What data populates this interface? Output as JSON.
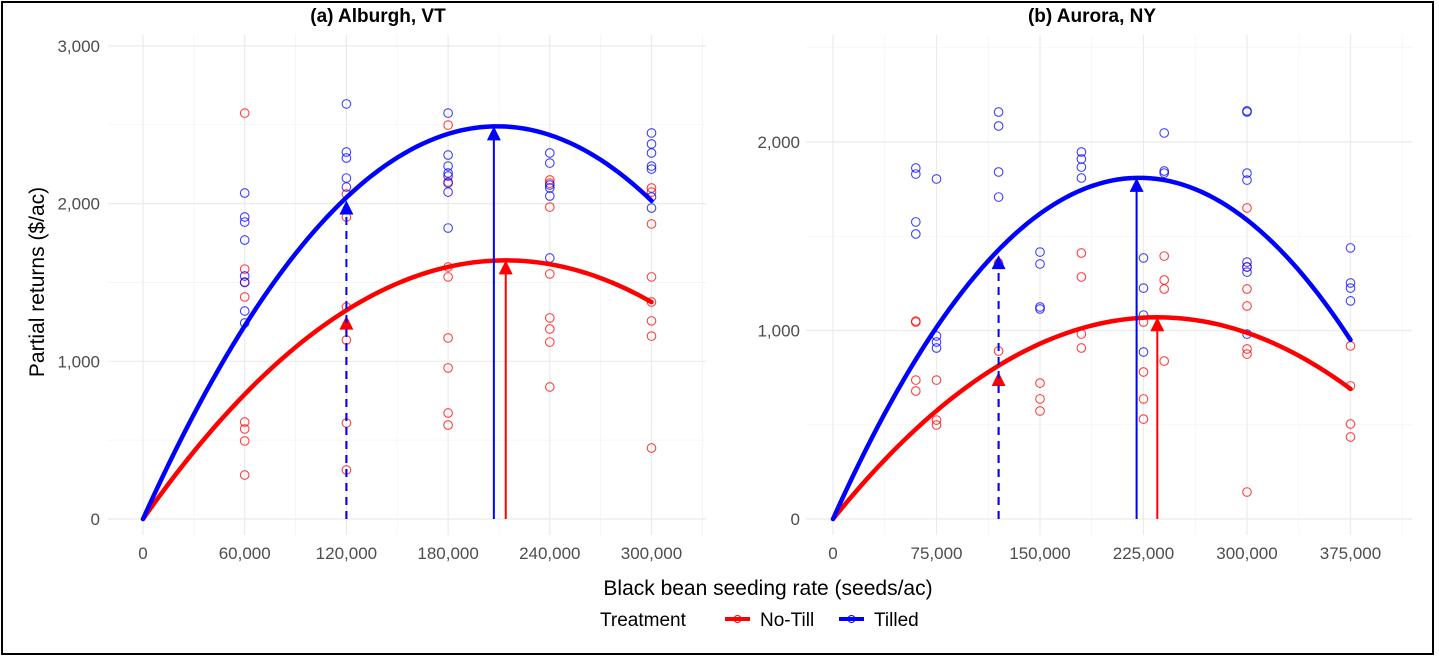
{
  "chart_data": [
    {
      "type": "scatter",
      "title": "(a) Alburgh, VT",
      "xlabel": "Black bean seeding rate (seeds/ac)",
      "ylabel": "Partial returns ($/ac)",
      "xlim": [
        0,
        330000
      ],
      "ylim": [
        0,
        3000
      ],
      "xticks": [
        0,
        60000,
        120000,
        180000,
        240000,
        300000
      ],
      "xtick_labels": [
        "0",
        "60,000",
        "120,000",
        "180,000",
        "240,000",
        "300,000"
      ],
      "yticks": [
        0,
        1000,
        2000,
        3000
      ],
      "ytick_labels": [
        "0",
        "1,000",
        "2,000",
        "3,000"
      ],
      "grid": true,
      "series": [
        {
          "name": "No-Till",
          "color": "#ff0000",
          "points": [
            [
              60000,
              2574
            ],
            [
              60000,
              1585
            ],
            [
              60000,
              1503
            ],
            [
              60000,
              1408
            ],
            [
              60000,
              615
            ],
            [
              60000,
              571
            ],
            [
              60000,
              495
            ],
            [
              60000,
              279
            ],
            [
              120000,
              2061
            ],
            [
              120000,
              1915
            ],
            [
              120000,
              1344
            ],
            [
              120000,
              1135
            ],
            [
              120000,
              609
            ],
            [
              120000,
              311
            ],
            [
              180000,
              2498
            ],
            [
              180000,
              2137
            ],
            [
              180000,
              1598
            ],
            [
              180000,
              1535
            ],
            [
              180000,
              1148
            ],
            [
              180000,
              958
            ],
            [
              180000,
              672
            ],
            [
              180000,
              596
            ],
            [
              240000,
              2150
            ],
            [
              240000,
              2130
            ],
            [
              240000,
              1978
            ],
            [
              240000,
              1554
            ],
            [
              240000,
              1275
            ],
            [
              240000,
              1205
            ],
            [
              240000,
              1122
            ],
            [
              240000,
              837
            ],
            [
              300000,
              2099
            ],
            [
              300000,
              2073
            ],
            [
              300000,
              1871
            ],
            [
              300000,
              1535
            ],
            [
              300000,
              1376
            ],
            [
              300000,
              1256
            ],
            [
              300000,
              1160
            ],
            [
              300000,
              450
            ]
          ],
          "fit": {
            "model": "quadratic through origin",
            "optimum_rate": 214000,
            "max_return": 1640,
            "x_end": 300000
          },
          "economic_optimum_marker": {
            "rate": 120000,
            "value": 1290,
            "style": "dashed"
          },
          "max_marker": {
            "rate": 214000,
            "value": 1640,
            "style": "solid"
          }
        },
        {
          "name": "Tilled",
          "color": "#0000ff",
          "points": [
            [
              60000,
              2067
            ],
            [
              60000,
              1915
            ],
            [
              60000,
              1883
            ],
            [
              60000,
              1769
            ],
            [
              60000,
              1541
            ],
            [
              60000,
              1500
            ],
            [
              60000,
              1319
            ],
            [
              60000,
              1243
            ],
            [
              120000,
              2632
            ],
            [
              120000,
              2327
            ],
            [
              120000,
              2289
            ],
            [
              120000,
              2162
            ],
            [
              120000,
              2105
            ],
            [
              180000,
              2574
            ],
            [
              180000,
              2308
            ],
            [
              180000,
              2238
            ],
            [
              180000,
              2194
            ],
            [
              180000,
              2175
            ],
            [
              180000,
              2130
            ],
            [
              180000,
              2073
            ],
            [
              180000,
              1845
            ],
            [
              240000,
              2321
            ],
            [
              240000,
              2257
            ],
            [
              240000,
              2118
            ],
            [
              240000,
              2099
            ],
            [
              240000,
              2048
            ],
            [
              240000,
              1655
            ],
            [
              300000,
              2448
            ],
            [
              300000,
              2378
            ],
            [
              300000,
              2321
            ],
            [
              300000,
              2238
            ],
            [
              300000,
              2219
            ],
            [
              300000,
              2042
            ],
            [
              300000,
              1972
            ]
          ],
          "fit": {
            "model": "quadratic through origin",
            "optimum_rate": 209000,
            "max_return": 2490,
            "x_end": 300000
          },
          "economic_optimum_marker": {
            "rate": 120000,
            "value": 2020,
            "style": "dashed"
          },
          "max_marker": {
            "rate": 207000,
            "value": 2490,
            "style": "solid"
          }
        }
      ]
    },
    {
      "type": "scatter",
      "title": "(b) Aurora, NY",
      "xlabel": "Black bean seeding rate (seeds/ac)",
      "ylabel": "",
      "xlim": [
        0,
        420000
      ],
      "ylim": [
        0,
        2500
      ],
      "xticks": [
        0,
        75000,
        150000,
        225000,
        300000,
        375000
      ],
      "xtick_labels": [
        "0",
        "75,000",
        "150,000",
        "225,000",
        "300,000",
        "375,000"
      ],
      "yticks": [
        0,
        1000,
        2000
      ],
      "ytick_labels": [
        "0",
        "1,000",
        "2,000"
      ],
      "grid": true,
      "series": [
        {
          "name": "No-Till",
          "color": "#ff0000",
          "points": [
            [
              60000,
              1050
            ],
            [
              60000,
              1045
            ],
            [
              60000,
              737
            ],
            [
              60000,
              679
            ],
            [
              75000,
              737
            ],
            [
              75000,
              525
            ],
            [
              75000,
              499
            ],
            [
              120000,
              1358
            ],
            [
              120000,
              891
            ],
            [
              150000,
              721
            ],
            [
              150000,
              637
            ],
            [
              150000,
              573
            ],
            [
              180000,
              1411
            ],
            [
              180000,
              1284
            ],
            [
              180000,
              981
            ],
            [
              180000,
              907
            ],
            [
              225000,
              1045
            ],
            [
              225000,
              780
            ],
            [
              225000,
              637
            ],
            [
              225000,
              530
            ],
            [
              240000,
              1395
            ],
            [
              240000,
              1268
            ],
            [
              240000,
              1220
            ],
            [
              240000,
              838
            ],
            [
              300000,
              1650
            ],
            [
              300000,
              1337
            ],
            [
              300000,
              1220
            ],
            [
              300000,
              1130
            ],
            [
              300000,
              902
            ],
            [
              300000,
              875
            ],
            [
              300000,
              143
            ],
            [
              375000,
              918
            ],
            [
              375000,
              706
            ],
            [
              375000,
              504
            ],
            [
              375000,
              435
            ]
          ],
          "fit": {
            "model": "quadratic through origin",
            "optimum_rate": 235000,
            "max_return": 1070,
            "x_end": 375000
          },
          "economic_optimum_marker": {
            "rate": 120000,
            "value": 780,
            "style": "dashed"
          },
          "max_marker": {
            "rate": 235000,
            "value": 1070,
            "style": "solid"
          }
        },
        {
          "name": "Tilled",
          "color": "#0000ff",
          "points": [
            [
              60000,
              1862
            ],
            [
              60000,
              1830
            ],
            [
              60000,
              1576
            ],
            [
              60000,
              1512
            ],
            [
              75000,
              1804
            ],
            [
              75000,
              971
            ],
            [
              75000,
              939
            ],
            [
              75000,
              907
            ],
            [
              120000,
              2159
            ],
            [
              120000,
              2085
            ],
            [
              120000,
              1841
            ],
            [
              120000,
              1708
            ],
            [
              150000,
              1416
            ],
            [
              150000,
              1353
            ],
            [
              150000,
              1125
            ],
            [
              150000,
              1114
            ],
            [
              180000,
              1947
            ],
            [
              180000,
              1910
            ],
            [
              180000,
              1867
            ],
            [
              180000,
              1809
            ],
            [
              225000,
              1385
            ],
            [
              225000,
              1225
            ],
            [
              225000,
              1082
            ],
            [
              225000,
              886
            ],
            [
              240000,
              2048
            ],
            [
              240000,
              1846
            ],
            [
              240000,
              1835
            ],
            [
              300000,
              2165
            ],
            [
              300000,
              2159
            ],
            [
              300000,
              1835
            ],
            [
              300000,
              1798
            ],
            [
              300000,
              1363
            ],
            [
              300000,
              1337
            ],
            [
              300000,
              1310
            ],
            [
              300000,
              981
            ],
            [
              375000,
              1438
            ],
            [
              375000,
              1252
            ],
            [
              375000,
              1225
            ],
            [
              375000,
              1157
            ]
          ],
          "fit": {
            "model": "quadratic through origin",
            "optimum_rate": 222000,
            "max_return": 1810,
            "x_end": 375000
          },
          "economic_optimum_marker": {
            "rate": 120000,
            "value": 1400,
            "style": "dashed"
          },
          "max_marker": {
            "rate": 220000,
            "value": 1810,
            "style": "solid"
          }
        }
      ]
    }
  ],
  "legend": {
    "title": "Treatment",
    "placement": "bottom",
    "items": [
      {
        "label": "No-Till",
        "color": "#ff0000"
      },
      {
        "label": "Tilled",
        "color": "#0000ff"
      }
    ]
  }
}
